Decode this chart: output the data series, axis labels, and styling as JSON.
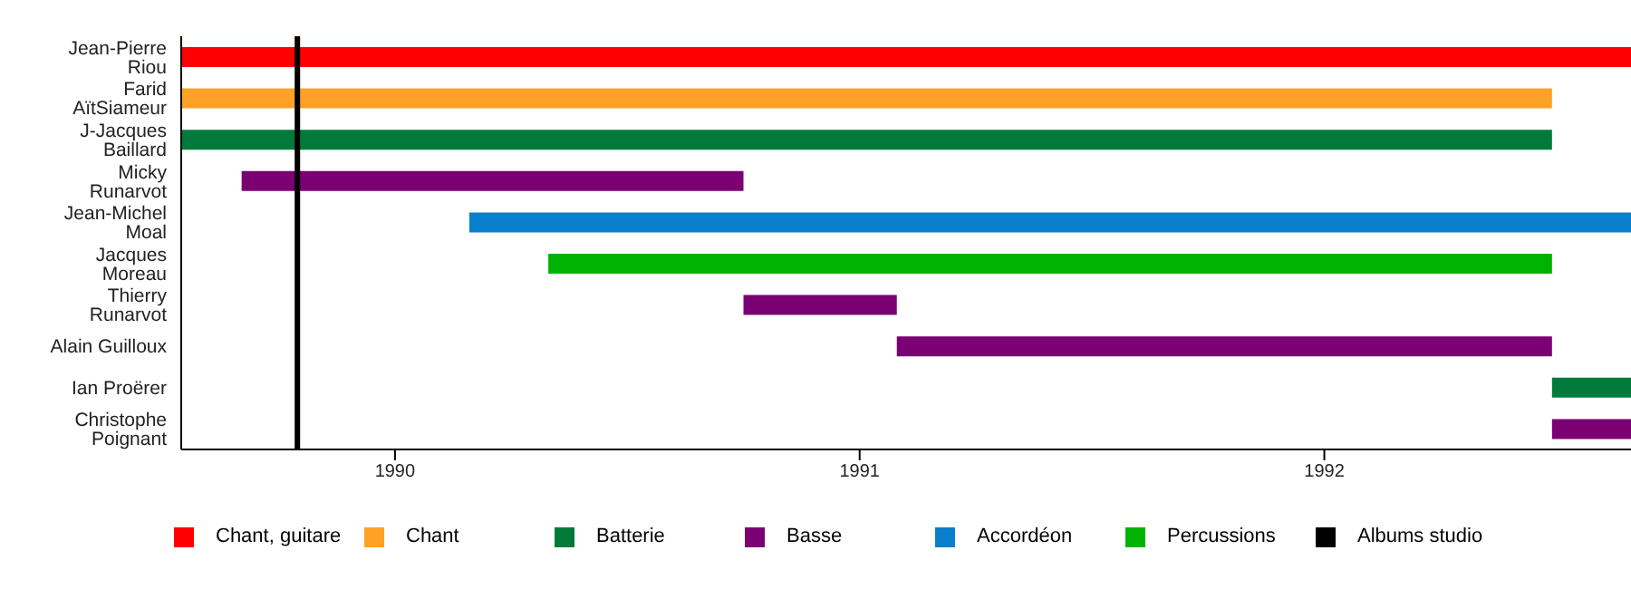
{
  "chart_data": {
    "type": "bar",
    "orientation": "horizontal",
    "categories": [
      "Jean-Pierre Riou",
      "Farid AïtSiameur",
      "J-Jacques Baillard",
      "Micky Runarvot",
      "Jean-Michel Moal",
      "Jacques Moreau",
      "Thierry Runarvot",
      "Alain Guilloux",
      "Ian Proërer",
      "Christophe Poignant"
    ],
    "series": [
      {
        "name": "Chant, guitare",
        "color": "#ff0000",
        "values": [
          3.12,
          null,
          null,
          null,
          null,
          null,
          null,
          null,
          null,
          null
        ],
        "base": [
          1989.54,
          null,
          null,
          null,
          null,
          null,
          null,
          null,
          null,
          null
        ]
      },
      {
        "name": "Chant",
        "color": "#ffa126",
        "values": [
          null,
          2.95,
          null,
          null,
          null,
          null,
          null,
          null,
          null,
          null
        ],
        "base": [
          null,
          1989.54,
          null,
          null,
          null,
          null,
          null,
          null,
          null,
          null
        ]
      },
      {
        "name": "Batterie",
        "color": "#007a3a",
        "values": [
          null,
          null,
          2.95,
          null,
          null,
          null,
          null,
          null,
          0.17,
          null
        ],
        "base": [
          null,
          null,
          1989.54,
          null,
          null,
          null,
          null,
          null,
          1992.49,
          null
        ]
      },
      {
        "name": "Basse",
        "color": "#7a0074",
        "values": [
          null,
          null,
          null,
          1.08,
          null,
          null,
          0.33,
          1.41,
          null,
          0.17
        ],
        "base": [
          null,
          null,
          null,
          1989.67,
          null,
          null,
          1990.75,
          1991.08,
          null,
          1992.49
        ]
      },
      {
        "name": "Accordéon",
        "color": "#0a7fcb",
        "values": [
          null,
          null,
          null,
          null,
          2.5,
          null,
          null,
          null,
          null,
          null
        ],
        "base": [
          null,
          null,
          null,
          null,
          1990.16,
          null,
          null,
          null,
          null,
          null
        ]
      },
      {
        "name": "Percussions",
        "color": "#00b300",
        "values": [
          null,
          null,
          null,
          null,
          null,
          2.16,
          null,
          null,
          null,
          null
        ],
        "base": [
          null,
          null,
          null,
          null,
          null,
          1990.33,
          null,
          null,
          null,
          null
        ]
      }
    ],
    "xlim": [
      1989.54,
      1992.66
    ],
    "xticks": [
      1990,
      1991,
      1992
    ],
    "ref_lines": [
      {
        "axis": "x",
        "value": 1989.79,
        "label": "Albums studio",
        "color": "#000000"
      }
    ],
    "grid": false,
    "legend": "bottom"
  }
}
